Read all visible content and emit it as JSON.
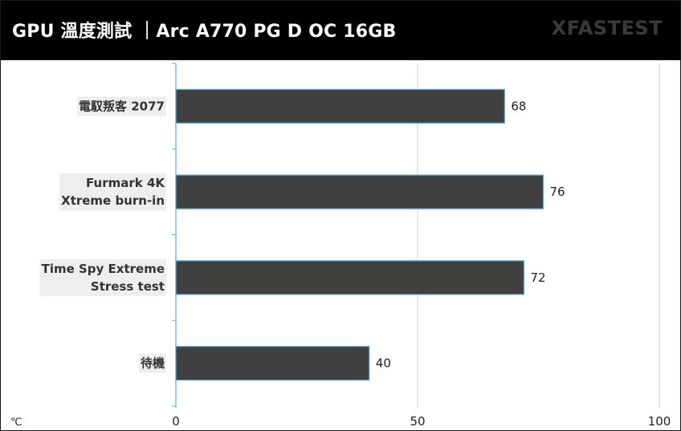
{
  "header": {
    "title": "GPU 溫度測試 ｜Arc A770 PG D OC 16GB",
    "brand": "XFASTEST"
  },
  "colors": {
    "header_bg": "#000000",
    "bar_fill": "#404040",
    "bar_stroke": "#5aaee0",
    "gridline": "#d0d0d0",
    "axis": "#5aaee0",
    "label_bg": "#eeeeee"
  },
  "chart_data": {
    "type": "bar",
    "orientation": "horizontal",
    "unit": "℃",
    "categories": [
      [
        "電馭叛客 2077"
      ],
      [
        "Furmark 4K",
        "Xtreme burn-in"
      ],
      [
        "Time Spy Extreme",
        "Stress test"
      ],
      [
        "待機"
      ]
    ],
    "values": [
      68,
      76,
      72,
      40
    ],
    "xlim": [
      0,
      100
    ],
    "xticks": [
      0,
      50,
      100
    ],
    "grid": true,
    "legend": "none"
  }
}
